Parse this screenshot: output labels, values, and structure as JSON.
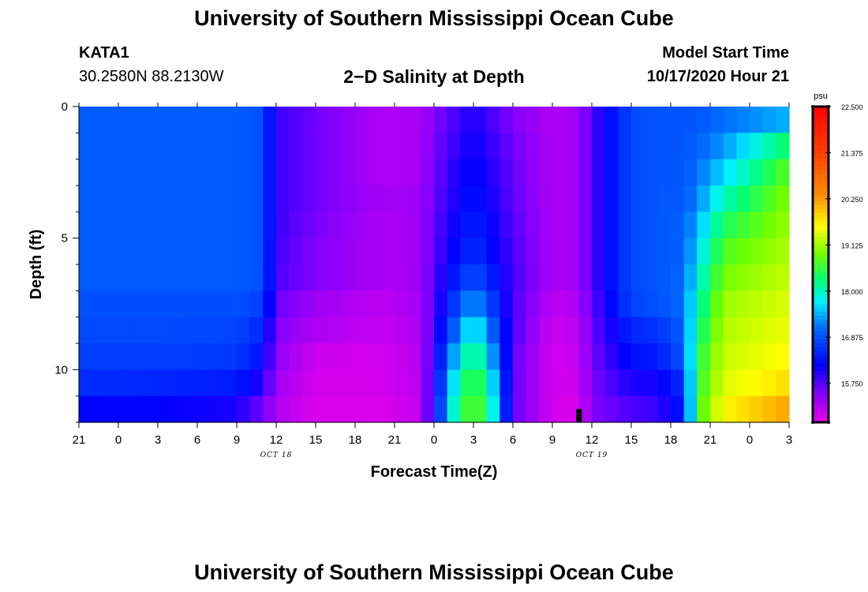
{
  "page": {
    "title_top": "University of Southern Mississippi Ocean Cube",
    "title_bottom": "University of Southern Mississippi Ocean Cube",
    "station_name": "KATA1",
    "station_coords": "30.2580N 88.2130W",
    "plot_title": "2−D Salinity at Depth",
    "start_label": "Model Start Time",
    "start_value": "10/17/2020 Hour 21"
  },
  "chart_data": {
    "type": "heatmap",
    "title": "2−D Salinity at Depth",
    "xlabel": "Forecast Time(Z)",
    "ylabel": "Depth (ft)",
    "x_ticks": [
      "21",
      "0",
      "3",
      "6",
      "9",
      "12",
      "15",
      "18",
      "21",
      "0",
      "3",
      "6",
      "9",
      "12",
      "15",
      "18",
      "21",
      "0",
      "3"
    ],
    "x_date_labels": [
      {
        "label": "OCT 18",
        "tick_index": 5
      },
      {
        "label": "OCT 19",
        "tick_index": 13
      }
    ],
    "hours_span": 54,
    "y_ticks": [
      {
        "value": 0,
        "label": "0"
      },
      {
        "value": 5,
        "label": "5"
      },
      {
        "value": 10,
        "label": "10"
      }
    ],
    "ylim": [
      0,
      12
    ],
    "colorbar": {
      "unit": "psu",
      "min": 14.8,
      "max": 22.5,
      "tick_values": [
        22.5,
        21.375,
        20.25,
        19.125,
        18.0,
        16.875,
        15.75
      ],
      "tick_labels": [
        "22.500",
        "21.375",
        "20.250",
        "19.125",
        "18.000",
        "16.875",
        "15.750"
      ]
    },
    "depth_rows": [
      0.5,
      1.5,
      2.5,
      3.5,
      4.5,
      5.5,
      6.5,
      7.5,
      8.5,
      9.5,
      10.5,
      11.5
    ],
    "time_keyframes": [
      0,
      6,
      12,
      14,
      15,
      18,
      23,
      26,
      27,
      29,
      30,
      31,
      33,
      36,
      38,
      39,
      42,
      44,
      46,
      47,
      49,
      54
    ],
    "salinity_keyframes": [
      [
        16.95,
        16.95,
        16.95,
        16.85,
        15.9,
        15.6,
        15.2,
        15.25,
        15.5,
        15.9,
        16.05,
        15.9,
        15.5,
        15.2,
        15.3,
        15.8,
        16.8,
        16.9,
        16.9,
        16.9,
        17.1,
        17.45
      ],
      [
        16.95,
        16.95,
        16.95,
        16.85,
        15.9,
        15.6,
        15.2,
        15.25,
        15.55,
        16.0,
        16.15,
        16.0,
        15.6,
        15.2,
        15.3,
        15.8,
        16.8,
        16.9,
        16.9,
        17.0,
        17.3,
        18.4
      ],
      [
        16.95,
        16.95,
        16.95,
        16.85,
        15.9,
        15.6,
        15.2,
        15.25,
        15.6,
        16.1,
        16.25,
        16.1,
        15.65,
        15.2,
        15.3,
        15.8,
        16.8,
        16.9,
        16.9,
        17.1,
        17.6,
        18.8
      ],
      [
        16.95,
        16.95,
        16.95,
        16.85,
        15.9,
        15.6,
        15.25,
        15.3,
        15.65,
        16.15,
        16.35,
        16.15,
        15.7,
        15.2,
        15.3,
        15.8,
        16.8,
        16.9,
        16.95,
        17.2,
        18.0,
        19.0
      ],
      [
        16.95,
        16.95,
        16.95,
        16.85,
        15.9,
        15.55,
        15.2,
        15.3,
        15.7,
        16.25,
        16.45,
        16.25,
        15.75,
        15.2,
        15.3,
        15.8,
        16.8,
        16.9,
        17.0,
        17.4,
        18.4,
        19.1
      ],
      [
        16.95,
        16.95,
        16.95,
        16.85,
        15.85,
        15.5,
        15.2,
        15.3,
        15.75,
        16.35,
        16.6,
        16.35,
        15.8,
        15.2,
        15.3,
        15.8,
        16.8,
        16.9,
        17.0,
        17.6,
        18.7,
        19.2
      ],
      [
        16.95,
        16.95,
        16.95,
        16.85,
        15.8,
        15.5,
        15.2,
        15.3,
        15.8,
        16.55,
        16.85,
        16.55,
        15.85,
        15.2,
        15.3,
        15.8,
        16.8,
        16.9,
        17.05,
        17.8,
        18.9,
        19.3
      ],
      [
        16.85,
        16.85,
        16.85,
        16.7,
        15.65,
        15.3,
        15.1,
        15.25,
        15.8,
        16.9,
        17.4,
        16.9,
        15.8,
        15.1,
        15.2,
        15.7,
        16.75,
        16.85,
        17.1,
        18.0,
        19.1,
        19.4
      ],
      [
        16.8,
        16.8,
        16.75,
        16.5,
        15.5,
        15.2,
        15.05,
        15.2,
        15.9,
        17.3,
        17.9,
        17.3,
        15.8,
        15.0,
        15.1,
        15.65,
        16.5,
        16.6,
        17.0,
        18.2,
        19.2,
        19.5
      ],
      [
        16.7,
        16.7,
        16.65,
        16.3,
        15.4,
        15.0,
        14.95,
        15.15,
        16.0,
        17.8,
        18.3,
        17.8,
        15.7,
        14.95,
        15.05,
        15.6,
        16.3,
        16.4,
        16.9,
        18.4,
        19.3,
        19.6
      ],
      [
        16.55,
        16.5,
        16.4,
        16.0,
        15.3,
        14.95,
        14.95,
        15.1,
        16.1,
        18.2,
        18.6,
        18.2,
        15.7,
        14.95,
        15.0,
        15.55,
        16.05,
        16.1,
        16.6,
        18.5,
        19.4,
        19.8
      ],
      [
        16.2,
        16.2,
        16.05,
        15.6,
        15.2,
        14.9,
        14.9,
        15.05,
        16.2,
        18.5,
        18.7,
        18.5,
        15.7,
        14.95,
        14.9,
        15.5,
        15.8,
        15.9,
        16.4,
        18.6,
        19.6,
        20.2
      ]
    ],
    "missing_mark_hour": 38
  }
}
